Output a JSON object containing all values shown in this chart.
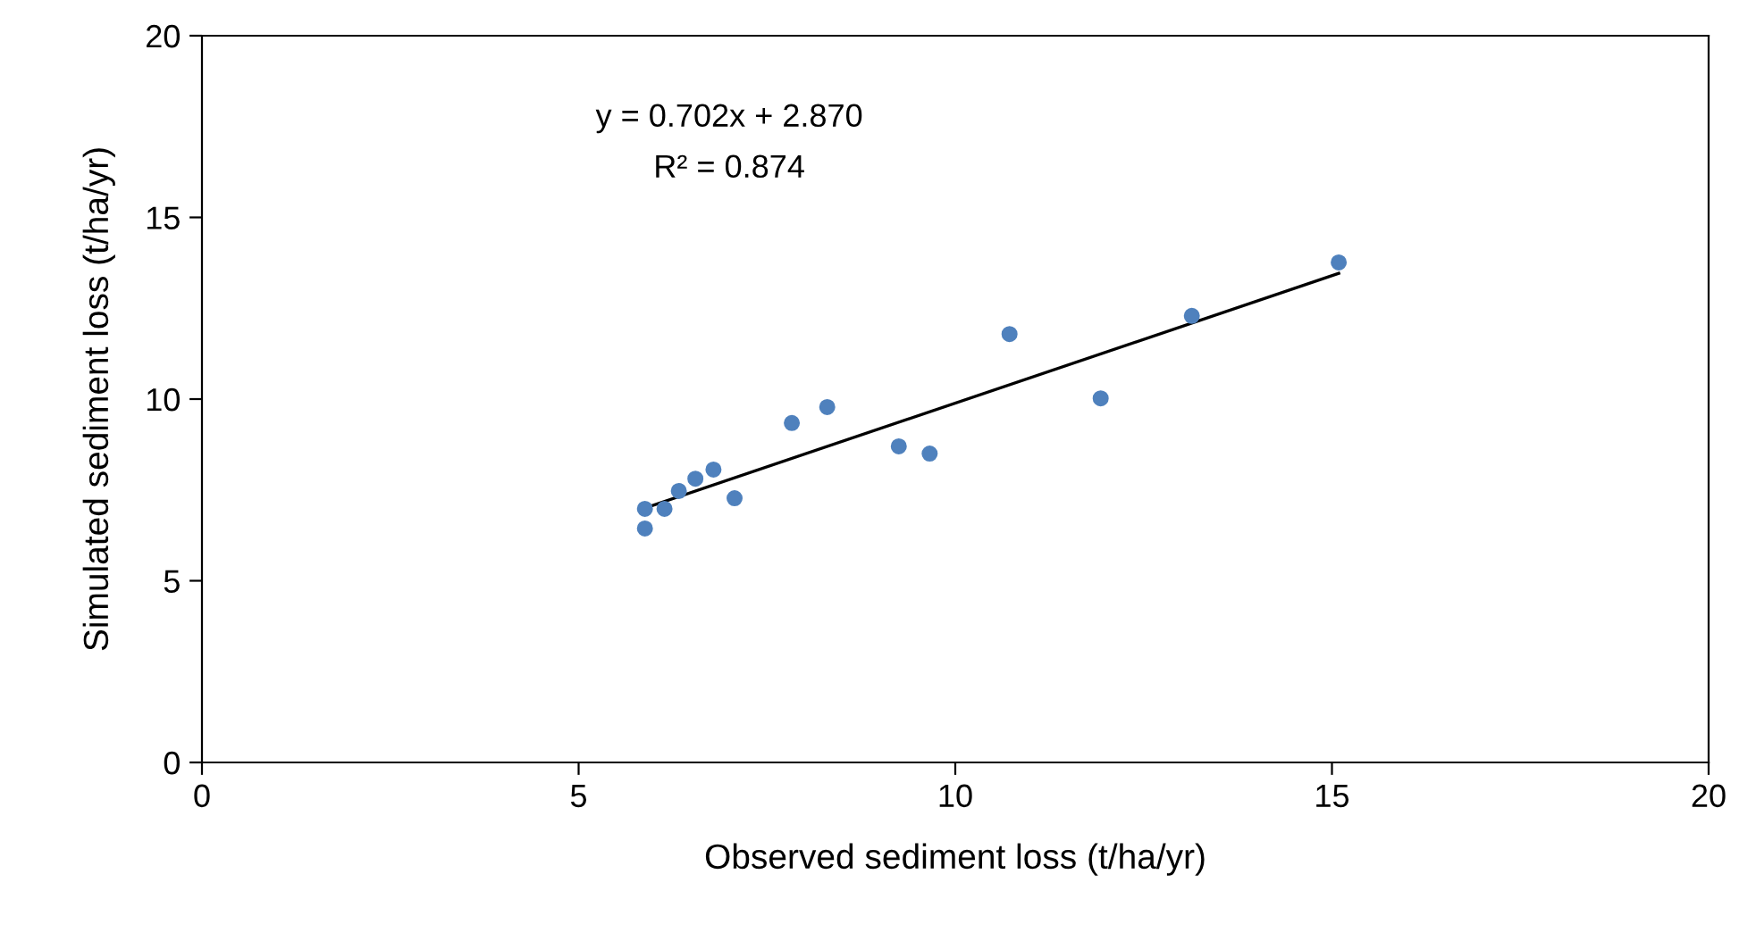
{
  "chart_data": {
    "type": "scatter",
    "xlabel": "Observed sediment loss (t/ha/yr)",
    "ylabel": "Simulated sediment loss (t/ha/yr)",
    "annotations": [
      "y = 0.702x + 2.870",
      "R² = 0.874"
    ],
    "xlim": [
      0,
      20
    ],
    "xticks": [
      0,
      5,
      10,
      15,
      20
    ],
    "ylim": [
      0,
      20
    ],
    "yticks": [
      0,
      5,
      10,
      15,
      20
    ],
    "grid": false,
    "legend": false,
    "series": [
      {
        "type": "scatter",
        "color": "#4f81bd",
        "marker": "circle",
        "x": [
          5.88,
          5.88,
          6.14,
          6.33,
          6.55,
          6.79,
          7.07,
          7.83,
          8.3,
          9.25,
          9.66,
          10.72,
          11.93,
          13.14,
          15.09
        ],
        "values": [
          6.98,
          6.44,
          6.98,
          7.47,
          7.81,
          8.06,
          7.27,
          9.34,
          9.78,
          8.7,
          8.5,
          11.79,
          10.02,
          12.29,
          13.76
        ]
      },
      {
        "type": "line",
        "color": "#000000",
        "marker": "none",
        "line_style": "solid",
        "x": [
          5.88,
          15.09
        ],
        "values": [
          7.0,
          13.46
        ]
      }
    ]
  }
}
